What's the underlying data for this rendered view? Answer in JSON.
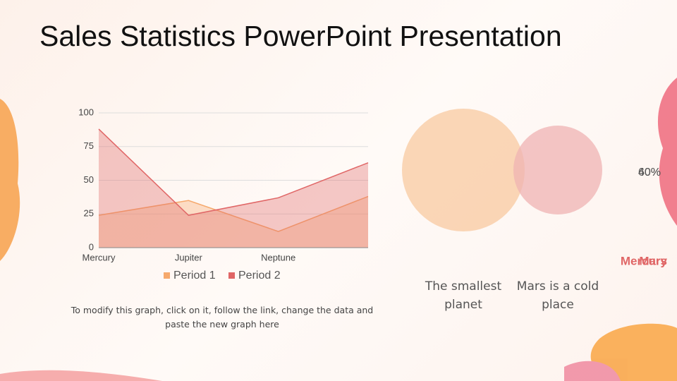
{
  "title": "Sales Statistics PowerPoint Presentation",
  "note": "To modify this graph, click on it, follow the link, change the data and paste the new graph here",
  "chart_data": {
    "type": "area",
    "categories": [
      "Mercury",
      "Jupiter",
      "Neptune",
      null
    ],
    "series": [
      {
        "name": "Period 1",
        "color": "#f6a96c",
        "values": [
          24,
          35,
          12,
          38
        ]
      },
      {
        "name": "Period 2",
        "color": "#e06666",
        "values": [
          88,
          24,
          37,
          63
        ]
      }
    ],
    "ylim": [
      0,
      100
    ],
    "yticks": [
      0,
      25,
      50,
      75,
      100
    ],
    "grid": true,
    "legend": "bottom"
  },
  "venn": {
    "items": [
      {
        "name": "Mercury",
        "value": 60,
        "value_label": "60%",
        "caption": "The smallest planet",
        "color": "#f8c9a0"
      },
      {
        "name": "Mars",
        "value": 40,
        "value_label": "40%",
        "caption": "Mars is a cold place",
        "color": "#efb3b3"
      }
    ]
  }
}
